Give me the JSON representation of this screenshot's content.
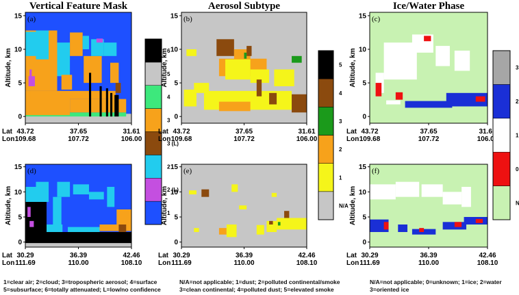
{
  "figure": {
    "column_titles": [
      "Vertical Feature Mask",
      "Aerosol Subtype",
      "Ice/Water Phase"
    ],
    "ylabel": "Altitude, km",
    "row_label_lat": "Lat",
    "row_label_lon": "Lon",
    "captions": [
      [
        "1=clear air; 2=cloud; 3=tropospheric aerosol; 4=surface",
        "5=subsurface; 6=totally attenuated; L=low/no confidence"
      ],
      [
        "N/A=not applicable; 1=dust; 2=polluted continental/smoke",
        "3=clean continental; 4=polluted dust; 5=elevated smoke"
      ],
      [
        "N/A=not applicable; 0=unknown; 1=ice; 2=water",
        "3=oriented ice"
      ]
    ]
  },
  "chart_data": [
    {
      "type": "heatmap",
      "panel": "(a)",
      "title": "Vertical Feature Mask",
      "ylabel": "Altitude, km",
      "ylim": [
        -1,
        15.5
      ],
      "yticks": [
        0,
        5,
        10,
        15
      ],
      "lat_ticks": [
        "43.72",
        "37.65",
        "31.61"
      ],
      "lon_ticks": [
        "109.68",
        "107.72",
        "106.00"
      ],
      "colorbar": {
        "labels": [
          "1",
          "2 (L)",
          "2",
          "3 (L)",
          "3",
          "4",
          "5",
          "6"
        ],
        "colors": [
          "#1e50ff",
          "#c44fe0",
          "#22ccee",
          "#8b4a0e",
          "#f7a21b",
          "#3de87c",
          "#c6c6c6",
          "#000000"
        ]
      }
    },
    {
      "type": "heatmap",
      "panel": "(b)",
      "title": "Aerosol Subtype",
      "ylabel": "Altitude, km",
      "ylim": [
        -1,
        15.5
      ],
      "yticks": [
        0,
        5,
        10,
        15
      ],
      "lat_ticks": [
        "43.72",
        "37.65",
        "31.61"
      ],
      "lon_ticks": [
        "109.68",
        "107.72",
        "106.00"
      ],
      "colorbar": {
        "labels": [
          "N/A",
          "1",
          "2",
          "3",
          "4",
          "5"
        ],
        "colors": [
          "#c6c6c6",
          "#f5f51a",
          "#f7a21b",
          "#1b9a1b",
          "#8b4a0e",
          "#000000"
        ]
      }
    },
    {
      "type": "heatmap",
      "panel": "(c)",
      "title": "Ice/Water Phase",
      "ylabel": "Altitude, km",
      "ylim": [
        -1,
        15.5
      ],
      "yticks": [
        0,
        5,
        10,
        15
      ],
      "lat_ticks": [
        "43.72",
        "37.65",
        "31.61"
      ],
      "lon_ticks": [
        "109.68",
        "107.72",
        "106.00"
      ],
      "colorbar": {
        "labels": [
          "N/A",
          "0",
          "1",
          "2",
          "3"
        ],
        "colors": [
          "#c8f2b2",
          "#ee1111",
          "#ffffff",
          "#1a2fd6",
          "#a6a6a6"
        ]
      }
    },
    {
      "type": "heatmap",
      "panel": "(d)",
      "ylabel": "Altitude, km",
      "ylim": [
        -1,
        15.5
      ],
      "yticks": [
        0,
        5,
        10,
        15
      ],
      "lat_ticks": [
        "30.29",
        "36.39",
        "42.46"
      ],
      "lon_ticks": [
        "111.69",
        "110.00",
        "108.10"
      ]
    },
    {
      "type": "heatmap",
      "panel": "(e)",
      "ylabel": "Altitude, km",
      "ylim": [
        -1,
        15.5
      ],
      "yticks": [
        0,
        5,
        10,
        15
      ],
      "lat_ticks": [
        "30.29",
        "36.39",
        "42.46"
      ],
      "lon_ticks": [
        "111.69",
        "110.00",
        "108.10"
      ]
    },
    {
      "type": "heatmap",
      "panel": "(f)",
      "ylabel": "Altitude, km",
      "ylim": [
        -1,
        15.5
      ],
      "yticks": [
        0,
        5,
        10,
        15
      ],
      "lat_ticks": [
        "30.29",
        "36.39",
        "42.46"
      ],
      "lon_ticks": [
        "111.69",
        "110.00",
        "108.10"
      ]
    }
  ]
}
